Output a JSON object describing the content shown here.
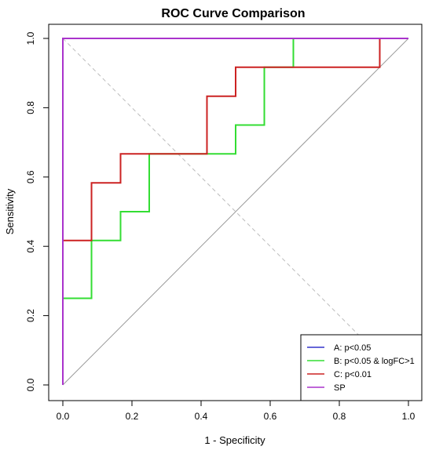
{
  "chart_data": {
    "type": "line",
    "title": "ROC Curve Comparison",
    "xlabel": "1 - Specificity",
    "ylabel": "Sensitivity",
    "xlim": [
      0,
      1
    ],
    "ylim": [
      0,
      1
    ],
    "xticks": [
      "0.0",
      "0.2",
      "0.4",
      "0.6",
      "0.8",
      "1.0"
    ],
    "yticks": [
      "0.0",
      "0.2",
      "0.4",
      "0.6",
      "0.8",
      "1.0"
    ],
    "grid": false,
    "legend_position": "bottom-right",
    "reference_lines": [
      {
        "from": [
          0,
          0
        ],
        "to": [
          1,
          1
        ],
        "color": "#999999",
        "style": "solid"
      },
      {
        "from": [
          0,
          1
        ],
        "to": [
          1,
          0
        ],
        "color": "#bbbbbb",
        "style": "dashed"
      }
    ],
    "series": [
      {
        "name": "A: p<0.05",
        "color": "#3333cc",
        "x": [
          0,
          0,
          1
        ],
        "y": [
          0,
          1,
          1
        ]
      },
      {
        "name": "B: p<0.05 & logFC>1",
        "color": "#33dd33",
        "x": [
          0,
          0,
          0.083,
          0.083,
          0.167,
          0.167,
          0.25,
          0.25,
          0.5,
          0.5,
          0.583,
          0.583,
          0.667,
          0.667,
          1
        ],
        "y": [
          0,
          0.25,
          0.25,
          0.417,
          0.417,
          0.5,
          0.5,
          0.667,
          0.667,
          0.75,
          0.75,
          0.917,
          0.917,
          1,
          1
        ]
      },
      {
        "name": "C: p<0.01",
        "color": "#cc2222",
        "x": [
          0,
          0,
          0.083,
          0.083,
          0.167,
          0.167,
          0.417,
          0.417,
          0.5,
          0.5,
          0.917,
          0.917,
          1
        ],
        "y": [
          0,
          0.417,
          0.417,
          0.583,
          0.583,
          0.667,
          0.667,
          0.833,
          0.833,
          0.917,
          0.917,
          1,
          1
        ]
      },
      {
        "name": "SP",
        "color": "#aa33cc",
        "x": [
          0,
          0,
          1
        ],
        "y": [
          0,
          1,
          1
        ]
      }
    ]
  }
}
